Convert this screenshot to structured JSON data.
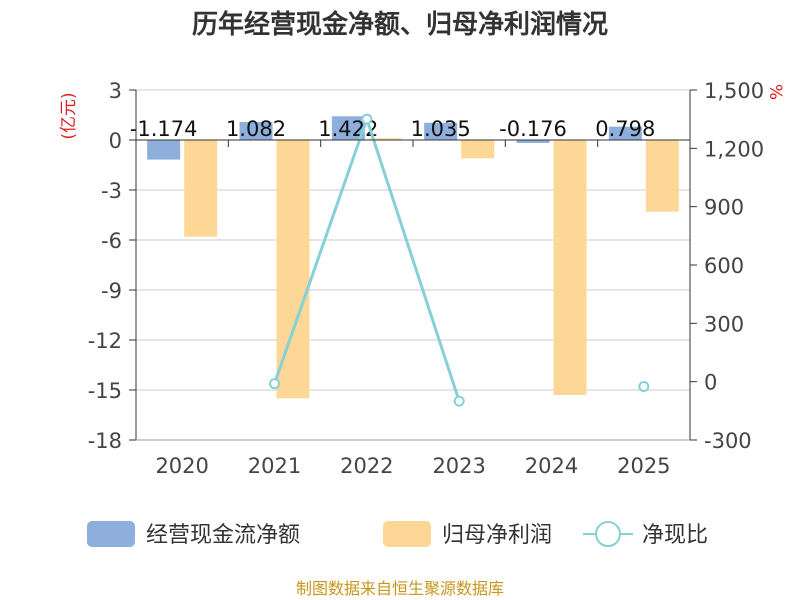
{
  "chart_data": {
    "type": "bar",
    "title": "历年经营现金净额、归母净利润情况",
    "categories": [
      "2020",
      "2021",
      "2022",
      "2023",
      "2024",
      "2025"
    ],
    "left_axis": {
      "unit": "(亿元)",
      "min": -18,
      "max": 3,
      "ticks": [
        "3",
        "0",
        "-3",
        "-6",
        "-9",
        "-12",
        "-15",
        "-18"
      ]
    },
    "right_axis": {
      "unit": "%",
      "min": -300,
      "max": 1500,
      "ticks": [
        "1,500",
        "1,200",
        "900",
        "600",
        "300",
        "0",
        "-300"
      ]
    },
    "series": [
      {
        "name": "经营现金流净额",
        "type": "bar",
        "axis": "left",
        "color": "#8eaedc",
        "values": [
          -1.174,
          1.082,
          1.422,
          1.035,
          -0.176,
          0.798
        ],
        "labels": [
          "-1.174",
          "1.082",
          "1.422",
          "1.035",
          "-0.176",
          "0.798"
        ]
      },
      {
        "name": "归母净利润",
        "type": "bar",
        "axis": "left",
        "color": "#fdd795",
        "values": [
          -5.8,
          -15.5,
          0.1,
          -1.1,
          -15.3,
          -4.3
        ]
      },
      {
        "name": "净现比",
        "type": "line",
        "axis": "right",
        "color": "#86d0d8",
        "values": [
          null,
          -10,
          1350,
          -100,
          null,
          -25
        ]
      }
    ],
    "legend": [
      "经营现金流净额",
      "归母净利润",
      "净现比"
    ]
  },
  "footer": {
    "source": "制图数据来自恒生聚源数据库"
  }
}
